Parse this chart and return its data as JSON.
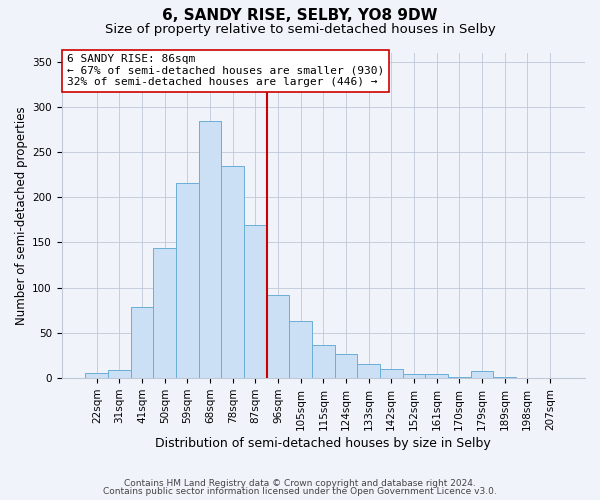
{
  "title": "6, SANDY RISE, SELBY, YO8 9DW",
  "subtitle": "Size of property relative to semi-detached houses in Selby",
  "xlabel": "Distribution of semi-detached houses by size in Selby",
  "ylabel": "Number of semi-detached properties",
  "bin_labels": [
    "22sqm",
    "31sqm",
    "41sqm",
    "50sqm",
    "59sqm",
    "68sqm",
    "78sqm",
    "87sqm",
    "96sqm",
    "105sqm",
    "115sqm",
    "124sqm",
    "133sqm",
    "142sqm",
    "152sqm",
    "161sqm",
    "170sqm",
    "179sqm",
    "189sqm",
    "198sqm",
    "207sqm"
  ],
  "bar_values": [
    6,
    9,
    79,
    144,
    216,
    284,
    234,
    169,
    92,
    63,
    37,
    27,
    16,
    10,
    5,
    5,
    1,
    8,
    1,
    0,
    0
  ],
  "bar_color": "#cce0f5",
  "bar_edge_color": "#6aaed6",
  "vline_color": "#cc0000",
  "vline_bin_index": 7,
  "annotation_title": "6 SANDY RISE: 86sqm",
  "annotation_line1": "← 67% of semi-detached houses are smaller (930)",
  "annotation_line2": "32% of semi-detached houses are larger (446) →",
  "annotation_box_color": "#ffffff",
  "annotation_box_edge": "#cc0000",
  "ylim": [
    0,
    360
  ],
  "yticks": [
    0,
    50,
    100,
    150,
    200,
    250,
    300,
    350
  ],
  "footnote1": "Contains HM Land Registry data © Crown copyright and database right 2024.",
  "footnote2": "Contains public sector information licensed under the Open Government Licence v3.0.",
  "bg_color": "#f0f4fa",
  "title_fontsize": 11,
  "subtitle_fontsize": 9.5,
  "ylabel_fontsize": 8.5,
  "xlabel_fontsize": 9,
  "tick_fontsize": 7.5,
  "annot_fontsize": 8,
  "footnote_fontsize": 6.5
}
